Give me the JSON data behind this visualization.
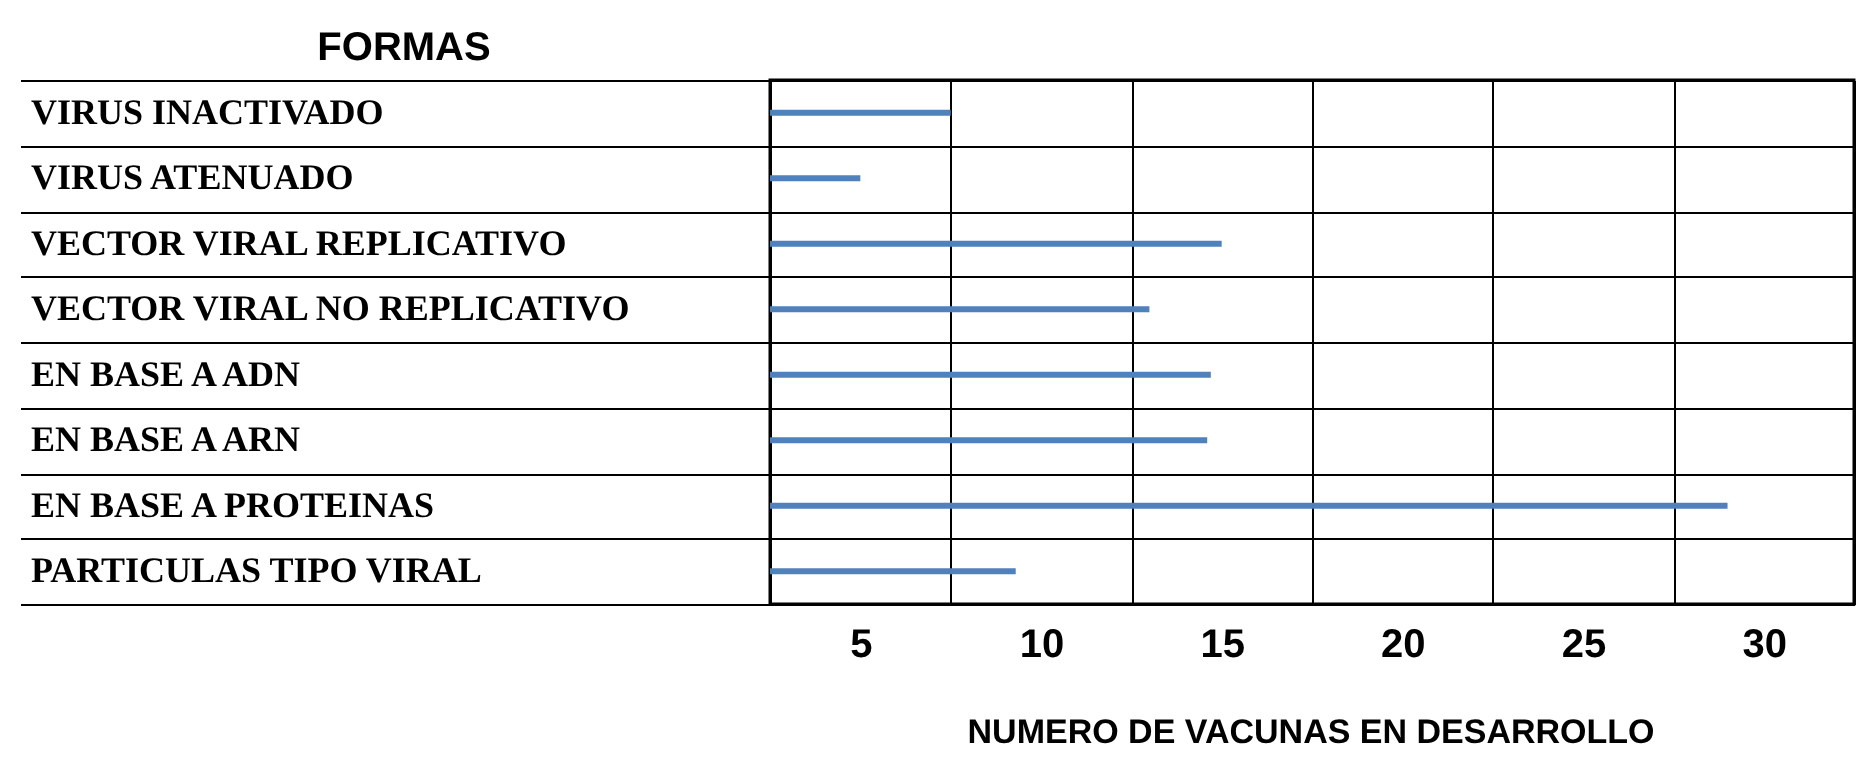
{
  "chart_data": {
    "type": "bar",
    "orientation": "horizontal",
    "annotations": [
      "FORMAS"
    ],
    "xlabel": "NUMERO DE VACUNAS EN DESARROLLO",
    "categories": [
      "VIRUS INACTIVADO",
      "VIRUS ATENUADO",
      "VECTOR VIRAL REPLICATIVO",
      "VECTOR VIRAL NO REPLICATIVO",
      "EN BASE A ADN",
      "EN BASE A ARN",
      "EN BASE A PROTEINAS",
      "PARTICULAS TIPO VIRAL"
    ],
    "series": [
      {
        "color": "#4f81bd",
        "values": [
          7.5,
          5,
          15,
          13,
          14.7,
          14.6,
          29,
          9.3
        ]
      }
    ],
    "xlim": [
      2.5,
      32.5
    ],
    "xticks": [
      {
        "value": 2.5,
        "label": null
      },
      5,
      {
        "value": 7.5,
        "label": null
      },
      10,
      {
        "value": 12.5,
        "label": null
      },
      15,
      {
        "value": 17.5,
        "label": null
      },
      20,
      {
        "value": 22.5,
        "label": null
      },
      25,
      {
        "value": 27.5,
        "label": null
      },
      30,
      {
        "value": 32.5,
        "label": null
      }
    ],
    "grid": true,
    "legend": false
  }
}
